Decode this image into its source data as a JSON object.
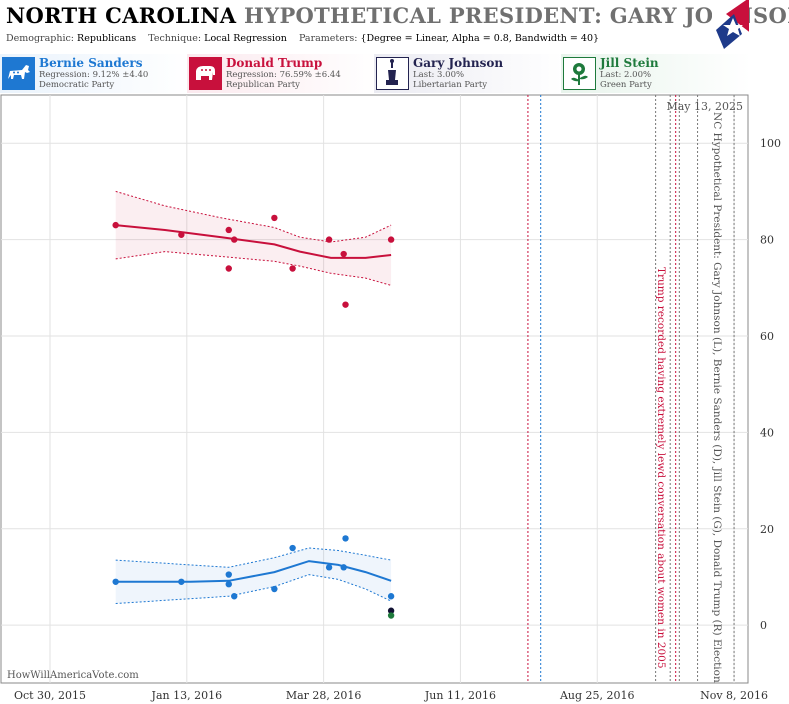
{
  "header": {
    "state": "NORTH CAROLINA",
    "title_rest": "HYPOTHETICAL PRESIDENT: GARY JOHNSON",
    "demographic_label": "Demographic:",
    "demographic_value": "Republicans",
    "technique_label": "Technique:",
    "technique_value": "Local Regression",
    "parameters_label": "Parameters:",
    "parameters_value": "{Degree = Linear, Alpha = 0.8, Bandwidth = 40}"
  },
  "candidates": [
    {
      "name": "Bernie Sanders",
      "line1": "Regression: 9.12% ±4.40",
      "line2": "Democratic Party",
      "color": "#1e78d2",
      "icon": "donkey-icon"
    },
    {
      "name": "Donald Trump",
      "line1": "Regression: 76.59% ±6.44",
      "line2": "Republican Party",
      "color": "#c8103c",
      "icon": "elephant-icon"
    },
    {
      "name": "Gary Johnson",
      "line1": "Last: 3.00%",
      "line2": "Libertarian Party",
      "color": "#232350",
      "icon": "statue-of-liberty-icon"
    },
    {
      "name": "Jill Stein",
      "line1": "Last: 2.00%",
      "line2": "Green Party",
      "color": "#1e7a3c",
      "icon": "flower-icon"
    }
  ],
  "chart_data": {
    "type": "scatter",
    "date_label": "May 13, 2025",
    "watermark": "HowWillAmericaVote.com",
    "side_label": "NC Hypothetical President: Gary Johnson (L), Bernie Sanders (D), Jill Stein (G), Donald Trump (R) Election",
    "annotation": "Trump recorded having extremely lewd conversation about women in 2005",
    "x_ticks": [
      {
        "date": "2015-10-30",
        "label": "Oct 30, 2015"
      },
      {
        "date": "2016-01-13",
        "label": "Jan 13, 2016"
      },
      {
        "date": "2016-03-28",
        "label": "Mar 28, 2016"
      },
      {
        "date": "2016-06-11",
        "label": "Jun 11, 2016"
      },
      {
        "date": "2016-08-25",
        "label": "Aug 25, 2016"
      },
      {
        "date": "2016-11-08",
        "label": "Nov 8, 2016"
      }
    ],
    "xlim": [
      "2015-10-30",
      "2016-11-14"
    ],
    "y_ticks": [
      0,
      20,
      40,
      60,
      80,
      100
    ],
    "ylim": [
      -12,
      110
    ],
    "grid": true,
    "vlines": [
      {
        "date": "2016-07-18",
        "color": "#c8103c"
      },
      {
        "date": "2016-07-25",
        "color": "#1e78d2"
      },
      {
        "date": "2016-09-26",
        "color": "#777777"
      },
      {
        "date": "2016-10-04",
        "color": "#777777"
      },
      {
        "date": "2016-10-07",
        "color": "#c8103c"
      },
      {
        "date": "2016-10-09",
        "color": "#777777"
      },
      {
        "date": "2016-10-19",
        "color": "#777777"
      },
      {
        "date": "2016-11-08",
        "color": "#777777"
      }
    ],
    "series": [
      {
        "name": "Donald Trump",
        "color": "#c8103c",
        "points": [
          {
            "x": "2015-12-05",
            "y": 83
          },
          {
            "x": "2016-01-10",
            "y": 81
          },
          {
            "x": "2016-02-05",
            "y": 82
          },
          {
            "x": "2016-02-05",
            "y": 74
          },
          {
            "x": "2016-02-08",
            "y": 80
          },
          {
            "x": "2016-03-01",
            "y": 84.5
          },
          {
            "x": "2016-03-11",
            "y": 74
          },
          {
            "x": "2016-03-31",
            "y": 80
          },
          {
            "x": "2016-04-08",
            "y": 77
          },
          {
            "x": "2016-04-09",
            "y": 66.5
          },
          {
            "x": "2016-05-04",
            "y": 80
          }
        ],
        "fit": [
          {
            "x": "2015-12-05",
            "y": 83
          },
          {
            "x": "2016-01-01",
            "y": 82
          },
          {
            "x": "2016-02-01",
            "y": 80.5
          },
          {
            "x": "2016-03-01",
            "y": 79
          },
          {
            "x": "2016-03-15",
            "y": 77.5
          },
          {
            "x": "2016-04-01",
            "y": 76.2
          },
          {
            "x": "2016-04-20",
            "y": 76.2
          },
          {
            "x": "2016-05-04",
            "y": 76.8
          }
        ],
        "upper": [
          {
            "x": "2015-12-05",
            "y": 90
          },
          {
            "x": "2016-01-01",
            "y": 87
          },
          {
            "x": "2016-02-01",
            "y": 84.5
          },
          {
            "x": "2016-03-01",
            "y": 82.5
          },
          {
            "x": "2016-03-15",
            "y": 80.5
          },
          {
            "x": "2016-04-01",
            "y": 79.5
          },
          {
            "x": "2016-04-20",
            "y": 80.5
          },
          {
            "x": "2016-05-04",
            "y": 83
          }
        ],
        "lower": [
          {
            "x": "2015-12-05",
            "y": 76
          },
          {
            "x": "2016-01-01",
            "y": 77.5
          },
          {
            "x": "2016-02-01",
            "y": 76.5
          },
          {
            "x": "2016-03-01",
            "y": 75.5
          },
          {
            "x": "2016-03-15",
            "y": 74.5
          },
          {
            "x": "2016-04-01",
            "y": 73
          },
          {
            "x": "2016-04-20",
            "y": 72
          },
          {
            "x": "2016-05-04",
            "y": 70.5
          }
        ]
      },
      {
        "name": "Bernie Sanders",
        "color": "#1e78d2",
        "points": [
          {
            "x": "2015-12-05",
            "y": 9
          },
          {
            "x": "2016-01-10",
            "y": 9
          },
          {
            "x": "2016-02-05",
            "y": 10.5
          },
          {
            "x": "2016-02-05",
            "y": 8.5
          },
          {
            "x": "2016-02-08",
            "y": 6
          },
          {
            "x": "2016-03-01",
            "y": 7.5
          },
          {
            "x": "2016-03-11",
            "y": 16
          },
          {
            "x": "2016-03-31",
            "y": 12
          },
          {
            "x": "2016-04-08",
            "y": 12
          },
          {
            "x": "2016-04-09",
            "y": 18
          },
          {
            "x": "2016-05-04",
            "y": 6
          }
        ],
        "fit": [
          {
            "x": "2015-12-05",
            "y": 9
          },
          {
            "x": "2016-01-15",
            "y": 9
          },
          {
            "x": "2016-02-05",
            "y": 9.2
          },
          {
            "x": "2016-03-01",
            "y": 11
          },
          {
            "x": "2016-03-20",
            "y": 13.3
          },
          {
            "x": "2016-04-05",
            "y": 12.5
          },
          {
            "x": "2016-04-20",
            "y": 11
          },
          {
            "x": "2016-05-04",
            "y": 9.2
          }
        ],
        "upper": [
          {
            "x": "2015-12-05",
            "y": 13.5
          },
          {
            "x": "2016-01-15",
            "y": 12.5
          },
          {
            "x": "2016-02-05",
            "y": 12
          },
          {
            "x": "2016-03-01",
            "y": 14
          },
          {
            "x": "2016-03-20",
            "y": 16
          },
          {
            "x": "2016-04-05",
            "y": 15.5
          },
          {
            "x": "2016-04-20",
            "y": 14.5
          },
          {
            "x": "2016-05-04",
            "y": 13.5
          }
        ],
        "lower": [
          {
            "x": "2015-12-05",
            "y": 4.5
          },
          {
            "x": "2016-01-15",
            "y": 5.5
          },
          {
            "x": "2016-02-05",
            "y": 6
          },
          {
            "x": "2016-03-01",
            "y": 8
          },
          {
            "x": "2016-03-20",
            "y": 10.5
          },
          {
            "x": "2016-04-05",
            "y": 9.5
          },
          {
            "x": "2016-04-20",
            "y": 7.5
          },
          {
            "x": "2016-05-04",
            "y": 5
          }
        ]
      },
      {
        "name": "Gary Johnson",
        "color": "#111133",
        "points": [
          {
            "x": "2016-05-04",
            "y": 3
          }
        ]
      },
      {
        "name": "Jill Stein",
        "color": "#1e7a3c",
        "points": [
          {
            "x": "2016-05-04",
            "y": 2
          }
        ]
      }
    ]
  }
}
